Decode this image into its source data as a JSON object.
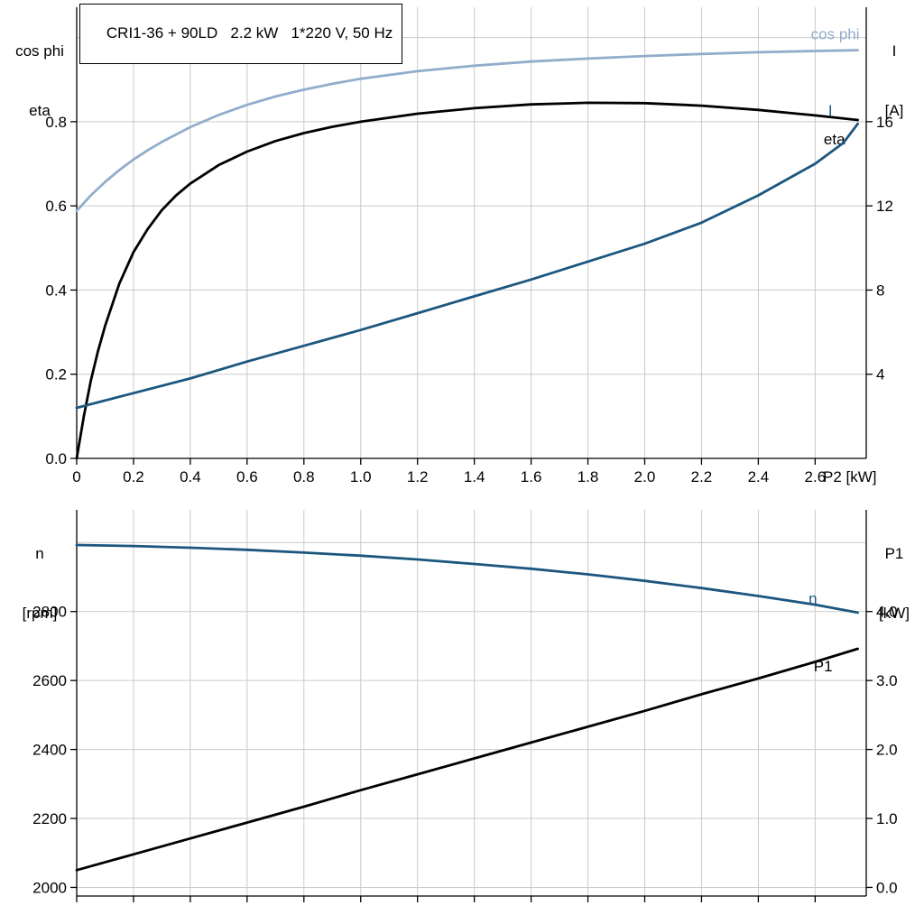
{
  "colors": {
    "background": "#ffffff",
    "black": "#000000",
    "dark_blue": "#1c567f",
    "light_blue": "#92adcc",
    "grid": "#c9c9c9",
    "axis": "#000000"
  },
  "chart_data": [
    {
      "id": "top",
      "type": "line",
      "title": "CRI1-36 + 90LD   2.2 kW   1*220 V, 50 Hz",
      "x_axis": {
        "label": "P2 [kW]",
        "range": [
          0,
          2.78
        ],
        "tick_values": [
          0,
          0.2,
          0.4,
          0.6,
          0.8,
          1.0,
          1.2,
          1.4,
          1.6,
          1.8,
          2.0,
          2.2,
          2.4,
          2.6
        ],
        "tick_labels": [
          "0",
          "0.2",
          "0.4",
          "0.6",
          "0.8",
          "1.0",
          "1.2",
          "1.4",
          "1.6",
          "1.8",
          "2.0",
          "2.2",
          "2.4",
          "2.6"
        ],
        "grid_values": [
          0.2,
          0.4,
          0.6,
          0.8,
          1.0,
          1.2,
          1.4,
          1.6,
          1.8,
          2.0,
          2.2,
          2.4,
          2.6
        ],
        "show_tick_labels": true
      },
      "y_left": {
        "title_lines": [
          "cos phi",
          "eta"
        ],
        "range": [
          0,
          1.072
        ],
        "tick_values": [
          0,
          0.2,
          0.4,
          0.6,
          0.8
        ],
        "tick_labels": [
          "0.0",
          "0.2",
          "0.4",
          "0.6",
          "0.8"
        ],
        "grid_values": [
          0.2,
          0.4,
          0.6,
          0.8,
          1.0
        ]
      },
      "y_right": {
        "title_lines": [
          "I",
          "[A]"
        ],
        "range": [
          0,
          21.44
        ],
        "tick_values": [
          4,
          8,
          12,
          16
        ],
        "tick_labels": [
          "4",
          "8",
          "12",
          "16"
        ]
      },
      "series": [
        {
          "name": "cos phi",
          "label": "cos phi",
          "axis": "left",
          "color": "light_blue",
          "label_dx": 2,
          "label_dy": -12,
          "x": [
            0,
            0.05,
            0.1,
            0.15,
            0.2,
            0.25,
            0.3,
            0.4,
            0.5,
            0.6,
            0.7,
            0.8,
            0.9,
            1.0,
            1.2,
            1.4,
            1.6,
            1.8,
            2.0,
            2.2,
            2.4,
            2.6,
            2.75
          ],
          "y": [
            0.588,
            0.625,
            0.657,
            0.685,
            0.71,
            0.732,
            0.752,
            0.787,
            0.816,
            0.84,
            0.86,
            0.876,
            0.89,
            0.902,
            0.92,
            0.933,
            0.943,
            0.95,
            0.956,
            0.961,
            0.965,
            0.968,
            0.97
          ]
        },
        {
          "name": "eta",
          "label": "eta",
          "axis": "left",
          "color": "black",
          "label_dx": -14,
          "label_dy": 27,
          "x": [
            0,
            0.025,
            0.05,
            0.075,
            0.1,
            0.15,
            0.2,
            0.25,
            0.3,
            0.35,
            0.4,
            0.5,
            0.6,
            0.7,
            0.8,
            0.9,
            1.0,
            1.2,
            1.4,
            1.6,
            1.8,
            2.0,
            2.2,
            2.4,
            2.6,
            2.75
          ],
          "y": [
            0,
            0.1,
            0.185,
            0.255,
            0.315,
            0.415,
            0.49,
            0.545,
            0.59,
            0.625,
            0.653,
            0.697,
            0.729,
            0.754,
            0.773,
            0.788,
            0.8,
            0.819,
            0.832,
            0.841,
            0.845,
            0.844,
            0.838,
            0.828,
            0.815,
            0.804
          ]
        },
        {
          "name": "I",
          "label": "I",
          "axis": "right",
          "color": "dark_blue",
          "label_dx": -28,
          "label_dy": -9,
          "x": [
            0,
            0.2,
            0.4,
            0.6,
            0.8,
            1.0,
            1.2,
            1.4,
            1.6,
            1.8,
            2.0,
            2.2,
            2.4,
            2.6,
            2.7,
            2.75
          ],
          "y": [
            2.4,
            3.1,
            3.8,
            4.6,
            5.35,
            6.1,
            6.9,
            7.7,
            8.5,
            9.35,
            10.2,
            11.2,
            12.5,
            14.0,
            15.0,
            15.9
          ]
        }
      ]
    },
    {
      "id": "bottom",
      "type": "line",
      "title": "",
      "x_axis": {
        "label": "",
        "range": [
          0,
          2.78
        ],
        "tick_values": [
          0,
          0.2,
          0.4,
          0.6,
          0.8,
          1.0,
          1.2,
          1.4,
          1.6,
          1.8,
          2.0,
          2.2,
          2.4,
          2.6
        ],
        "tick_labels": [],
        "grid_values": [
          0.2,
          0.4,
          0.6,
          0.8,
          1.0,
          1.2,
          1.4,
          1.6,
          1.8,
          2.0,
          2.2,
          2.4,
          2.6
        ],
        "show_tick_labels": false
      },
      "y_left": {
        "title_lines": [
          "n",
          "[rpm]"
        ],
        "range": [
          1975,
          3095
        ],
        "tick_values": [
          2000,
          2200,
          2400,
          2600,
          2800
        ],
        "tick_labels": [
          "2000",
          "2200",
          "2400",
          "2600",
          "2800"
        ],
        "grid_values": [
          2000,
          2200,
          2400,
          2600,
          2800,
          3000
        ]
      },
      "y_right": {
        "title_lines": [
          "P1",
          "[kW]"
        ],
        "range": [
          -0.125,
          5.475
        ],
        "tick_values": [
          0,
          1,
          2,
          3,
          4
        ],
        "tick_labels": [
          "0.0",
          "1.0",
          "2.0",
          "3.0",
          "4.0"
        ]
      },
      "series": [
        {
          "name": "n",
          "label": "n",
          "axis": "left",
          "color": "dark_blue",
          "label_dx": -45,
          "label_dy": -10,
          "x": [
            0,
            0.2,
            0.4,
            0.6,
            0.8,
            1.0,
            1.2,
            1.4,
            1.6,
            1.8,
            2.0,
            2.2,
            2.4,
            2.6,
            2.75
          ],
          "y": [
            2993,
            2990,
            2985,
            2979,
            2971,
            2962,
            2951,
            2938,
            2924,
            2908,
            2889,
            2868,
            2845,
            2820,
            2797
          ]
        },
        {
          "name": "P1",
          "label": "P1",
          "axis": "right",
          "color": "black",
          "label_dx": -28,
          "label_dy": 25,
          "x": [
            0,
            0.2,
            0.4,
            0.6,
            0.8,
            1.0,
            1.2,
            1.4,
            1.6,
            1.8,
            2.0,
            2.2,
            2.4,
            2.6,
            2.75
          ],
          "y": [
            0.25,
            0.48,
            0.71,
            0.94,
            1.17,
            1.41,
            1.64,
            1.87,
            2.1,
            2.33,
            2.56,
            2.8,
            3.03,
            3.27,
            3.46
          ]
        }
      ]
    }
  ]
}
